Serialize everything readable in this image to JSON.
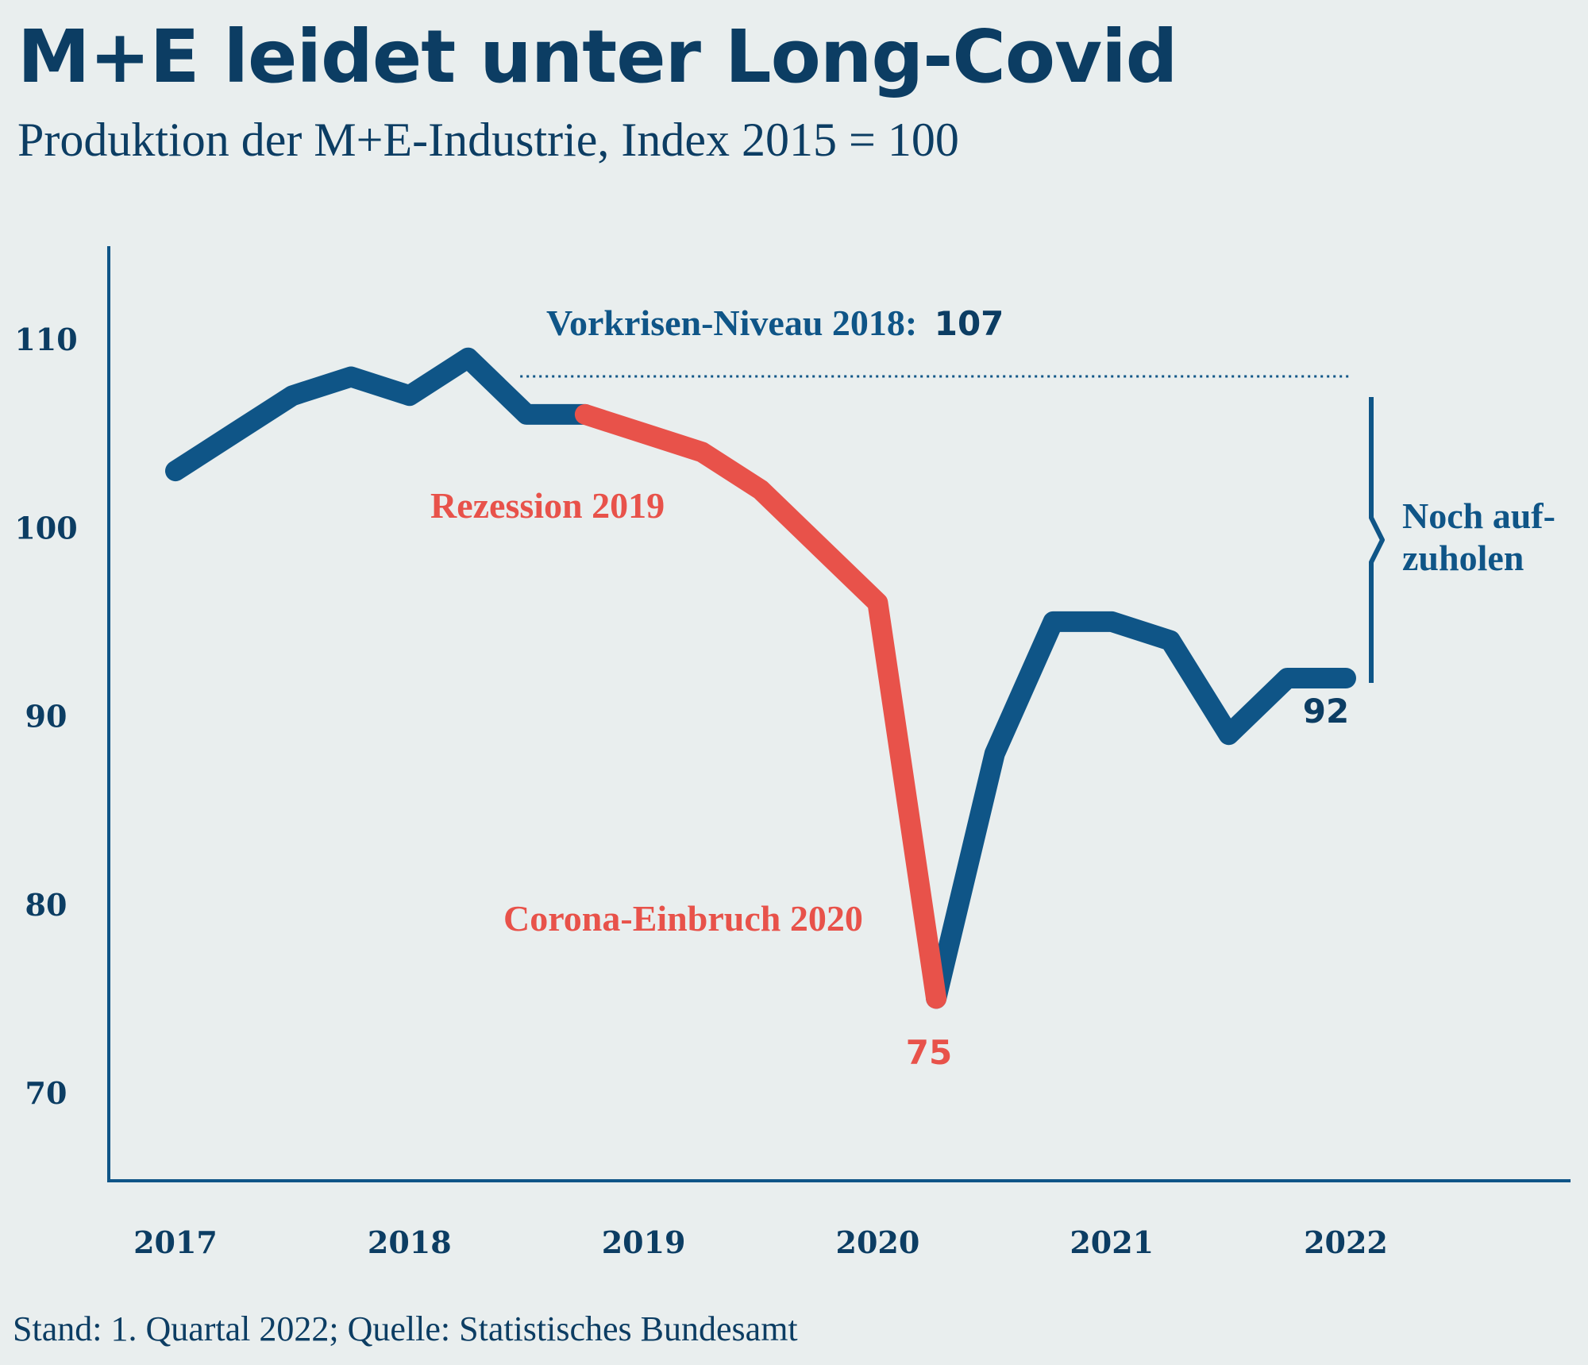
{
  "header": {
    "title": "M+E leidet unter Long-Covid",
    "subtitle": "Produktion der M+E-Industrie, Index 2015 = 100"
  },
  "footer": {
    "source": "Stand: 1. Quartal 2022; Quelle: Statistisches Bundesamt"
  },
  "colors": {
    "primary": "#0f5587",
    "accent": "#e8524a",
    "axis": "#0f5587",
    "text": "#0c3d63",
    "background": "#e9eeee"
  },
  "chart_data": {
    "type": "line",
    "title": "M+E leidet unter Long-Covid",
    "subtitle": "Produktion der M+E-Industrie, Index 2015 = 100",
    "xlabel": "",
    "ylabel": "",
    "x_ticks": [
      "2017",
      "2018",
      "2019",
      "2020",
      "2021",
      "2022"
    ],
    "y_ticks": [
      70,
      80,
      90,
      100,
      110
    ],
    "ylim": [
      65,
      115
    ],
    "xlim": [
      2016.75,
      2023.4
    ],
    "grid": false,
    "points": [
      {
        "x": 2017.0,
        "y": 103,
        "color": "primary"
      },
      {
        "x": 2017.25,
        "y": 105,
        "color": "primary"
      },
      {
        "x": 2017.5,
        "y": 107,
        "color": "primary"
      },
      {
        "x": 2017.75,
        "y": 108,
        "color": "primary"
      },
      {
        "x": 2018.0,
        "y": 107,
        "color": "primary"
      },
      {
        "x": 2018.25,
        "y": 109,
        "color": "primary"
      },
      {
        "x": 2018.5,
        "y": 106,
        "color": "primary"
      },
      {
        "x": 2018.75,
        "y": 106,
        "color": "accent"
      },
      {
        "x": 2019.0,
        "y": 105,
        "color": "accent"
      },
      {
        "x": 2019.25,
        "y": 104,
        "color": "accent"
      },
      {
        "x": 2019.5,
        "y": 102,
        "color": "accent"
      },
      {
        "x": 2019.75,
        "y": 99,
        "color": "accent"
      },
      {
        "x": 2020.0,
        "y": 96,
        "color": "accent"
      },
      {
        "x": 2020.25,
        "y": 75,
        "color": "primary"
      },
      {
        "x": 2020.5,
        "y": 88,
        "color": "primary"
      },
      {
        "x": 2020.75,
        "y": 95,
        "color": "primary"
      },
      {
        "x": 2021.0,
        "y": 95,
        "color": "primary"
      },
      {
        "x": 2021.25,
        "y": 94,
        "color": "primary"
      },
      {
        "x": 2021.5,
        "y": 89,
        "color": "primary"
      },
      {
        "x": 2021.75,
        "y": 92,
        "color": "primary"
      },
      {
        "x": 2022.0,
        "y": 92,
        "color": "primary"
      }
    ],
    "reference_line": {
      "y": 107,
      "x_start": 2018.5,
      "x_end": 2022.0,
      "style": "dotted"
    },
    "annotations": {
      "pre_crisis_text": "Vorkrisen-Niveau 2018:",
      "pre_crisis_value": "107",
      "recession": "Rezession 2019",
      "corona": "Corona-Einbruch 2020",
      "min_value": "75",
      "last_value": "92",
      "gap_line1": "Noch auf-",
      "gap_line2": "zuholen"
    }
  }
}
